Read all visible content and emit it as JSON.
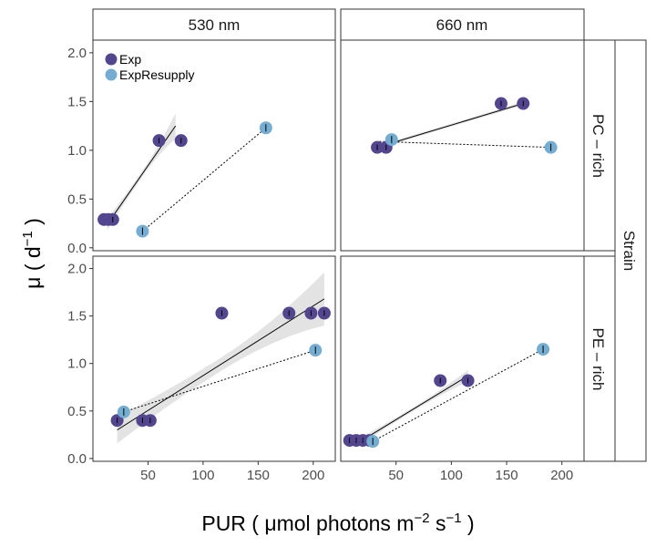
{
  "chart_data": {
    "type": "scatter",
    "facet_columns": [
      "530 nm",
      "660 nm"
    ],
    "facet_rows": [
      "PC – rich",
      "PE – rich"
    ],
    "outer_strip": "Strain",
    "xlabel": {
      "main": "PUR ( μmol photons  m",
      "sup1": "−2",
      "mid": "  s",
      "sup2": "−1",
      "end": " )"
    },
    "ylabel": {
      "main": "μ  ( d",
      "sup": "−1",
      "end": " )"
    },
    "x_ticks": [
      "50",
      "100",
      "150",
      "200"
    ],
    "x_tick_values": [
      50,
      100,
      150,
      200
    ],
    "y_ticks": [
      "0.0",
      "0.5",
      "1.0",
      "1.5",
      "2.0"
    ],
    "y_tick_values": [
      0,
      0.5,
      1.0,
      1.5,
      2.0
    ],
    "xlim": [
      0,
      220
    ],
    "ylim": [
      -0.03,
      2.13
    ],
    "legend": {
      "position": "top-left",
      "entries": [
        "Exp",
        "ExpResupply"
      ]
    },
    "colors": {
      "Exp": "#54468e",
      "ExpResupply": "#74add1",
      "band": "#d9d9d9",
      "border": "#333333"
    },
    "panels": [
      {
        "column": "530 nm",
        "row": "PC – rich",
        "Exp": {
          "x": [
            10,
            14,
            18,
            60,
            80
          ],
          "y": [
            0.29,
            0.29,
            0.29,
            1.1,
            1.1
          ]
        },
        "ExpResupply": {
          "x": [
            45,
            157
          ],
          "y": [
            0.17,
            1.23
          ]
        },
        "fit_Exp": {
          "x": [
            13,
            75
          ],
          "y": [
            0.24,
            1.25
          ],
          "band_halfwidth": [
            0.06,
            0.03,
            0.13
          ]
        },
        "fit_ExpResupply": {
          "x": [
            45,
            157
          ],
          "y": [
            0.17,
            1.23
          ]
        }
      },
      {
        "column": "660 nm",
        "row": "PC – rich",
        "Exp": {
          "x": [
            33,
            41,
            145,
            165
          ],
          "y": [
            1.03,
            1.03,
            1.48,
            1.48
          ]
        },
        "ExpResupply": {
          "x": [
            46,
            190
          ],
          "y": [
            1.11,
            1.03
          ]
        },
        "fit_Exp": {
          "x": [
            33,
            165
          ],
          "y": [
            1.03,
            1.48
          ],
          "band_halfwidth": [
            0.02,
            0.015,
            0.02
          ]
        },
        "fit_ExpResupply": {
          "x": [
            35,
            190
          ],
          "y": [
            1.09,
            1.03
          ]
        }
      },
      {
        "column": "530 nm",
        "row": "PE – rich",
        "Exp": {
          "x": [
            22,
            45,
            52,
            117,
            178,
            198,
            210
          ],
          "y": [
            0.4,
            0.4,
            0.4,
            1.53,
            1.53,
            1.53,
            1.53
          ]
        },
        "ExpResupply": {
          "x": [
            28,
            202
          ],
          "y": [
            0.49,
            1.14
          ]
        },
        "fit_Exp": {
          "x": [
            22,
            210
          ],
          "y": [
            0.3,
            1.68
          ],
          "band_halfwidth": [
            0.14,
            0.07,
            0.28
          ]
        },
        "fit_ExpResupply": {
          "x": [
            28,
            202
          ],
          "y": [
            0.49,
            1.14
          ]
        }
      },
      {
        "column": "660 nm",
        "row": "PE – rich",
        "Exp": {
          "x": [
            8,
            14,
            20,
            26,
            90,
            115
          ],
          "y": [
            0.19,
            0.19,
            0.19,
            0.19,
            0.82,
            0.82
          ]
        },
        "ExpResupply": {
          "x": [
            29,
            183
          ],
          "y": [
            0.18,
            1.15
          ]
        },
        "fit_Exp": {
          "x": [
            15,
            115
          ],
          "y": [
            0.16,
            0.87
          ],
          "band_halfwidth": [
            0.04,
            0.02,
            0.06
          ]
        },
        "fit_ExpResupply": {
          "x": [
            29,
            183
          ],
          "y": [
            0.18,
            1.15
          ]
        }
      }
    ]
  }
}
